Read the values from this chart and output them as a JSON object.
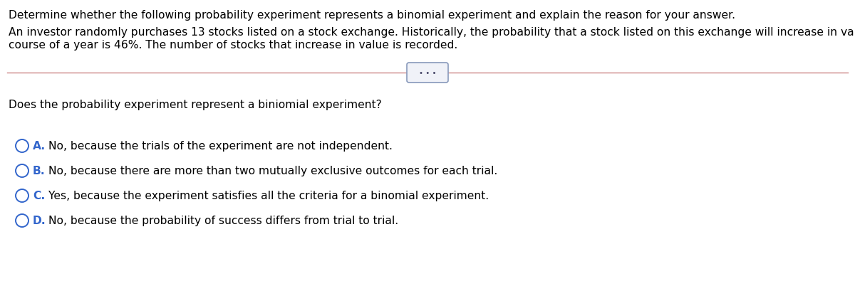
{
  "title_line": "Determine whether the following probability experiment represents a binomial experiment and explain the reason for your answer.",
  "body_line1": "An investor randomly purchases 13 stocks listed on a stock exchange. Historically, the probability that a stock listed on this exchange will increase in value over the",
  "body_line2": "course of a year is 46%. The number of stocks that increase in value is recorded.",
  "question": "Does the probability experiment represent a biniomial experiment?",
  "options": [
    {
      "label": "A.",
      "text": "  No, because the trials of the experiment are not independent."
    },
    {
      "label": "B.",
      "text": "  No, because there are more than two mutually exclusive outcomes for each trial."
    },
    {
      "label": "C.",
      "text": "  Yes, because the experiment satisfies all the criteria for a binomial experiment."
    },
    {
      "label": "D.",
      "text": "  No, because the probability of success differs from trial to trial."
    }
  ],
  "bg_color": "#ffffff",
  "text_color": "#000000",
  "option_label_color": "#3366cc",
  "circle_color": "#3366cc",
  "separator_color": "#cc8888",
  "font_size_title": 11.2,
  "font_size_body": 11.2,
  "font_size_question": 11.2,
  "font_size_option": 11.2,
  "fig_width": 12.0,
  "fig_height": 4.1,
  "dpi": 100
}
